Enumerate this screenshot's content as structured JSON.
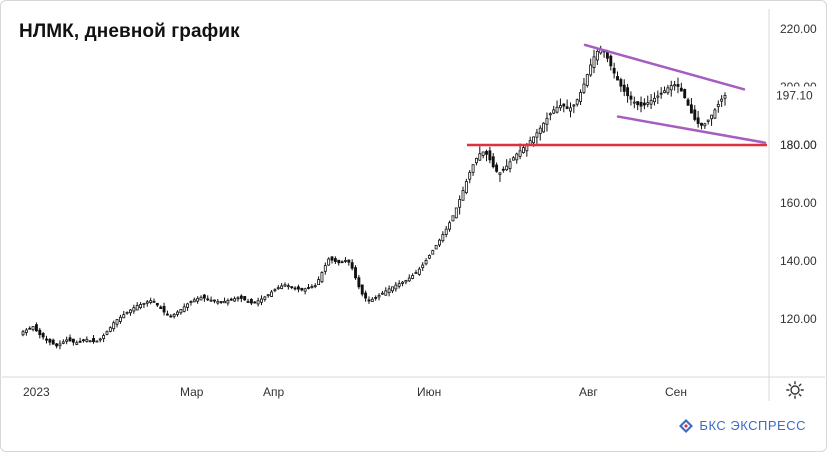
{
  "chart_data": {
    "type": "candlestick",
    "title": "НЛМК, дневной график",
    "ylim": [
      100,
      225
    ],
    "y_ticks": [
      120,
      140,
      160,
      180,
      200,
      220
    ],
    "y_tick_labels": [
      "120.00",
      "140.00",
      "160.00",
      "180.00",
      "200.00",
      "220.00"
    ],
    "x_tick_labels": [
      "2023",
      "Мар",
      "Апр",
      "Июн",
      "Авг",
      "Сен"
    ],
    "last_price": 197.1,
    "last_price_label": "197.10",
    "close": [
      115.6,
      116.2,
      116.8,
      117.4,
      115.9,
      114.6,
      113.8,
      112.7,
      112.0,
      111.3,
      110.7,
      111.4,
      112.1,
      112.8,
      112.4,
      112.0,
      111.8,
      112.2,
      112.6,
      113.0,
      112.5,
      112.2,
      112.4,
      113.1,
      114.3,
      115.6,
      117.0,
      118.7,
      119.8,
      120.6,
      121.5,
      122.3,
      123.1,
      123.9,
      124.7,
      125.0,
      125.4,
      125.9,
      126.3,
      126.1,
      124.8,
      123.6,
      122.4,
      121.5,
      120.9,
      121.6,
      122.4,
      123.3,
      124.2,
      125.2,
      126.0,
      126.6,
      127.1,
      127.5,
      127.2,
      126.9,
      126.5,
      126.2,
      126.0,
      125.8,
      126.1,
      126.4,
      126.7,
      127.0,
      127.3,
      127.1,
      126.6,
      126.0,
      125.5,
      125.8,
      126.3,
      126.9,
      127.6,
      128.4,
      129.3,
      130.1,
      130.8,
      131.4,
      131.8,
      131.5,
      131.1,
      130.7,
      130.3,
      130.0,
      130.4,
      130.8,
      131.2,
      131.5,
      133.6,
      136.0,
      138.4,
      140.7,
      140.3,
      139.8,
      139.4,
      139.7,
      140.2,
      139.6,
      137.5,
      134.2,
      131.1,
      128.6,
      127.2,
      126.4,
      126.8,
      127.4,
      128.1,
      128.9,
      129.7,
      130.4,
      131.1,
      131.7,
      132.2,
      132.7,
      133.3,
      134.1,
      135.0,
      136.0,
      137.2,
      138.6,
      140.2,
      141.9,
      143.6,
      145.4,
      147.2,
      149.1,
      151.0,
      153.2,
      155.6,
      158.3,
      161.2,
      164.3,
      167.4,
      170.5,
      173.2,
      175.4,
      177.0,
      177.6,
      176.8,
      174.9,
      172.5,
      170.9,
      170.4,
      171.3,
      172.7,
      174.2,
      175.6,
      176.9,
      178.0,
      179.1,
      180.2,
      181.5,
      182.8,
      184.2,
      185.8,
      187.5,
      189.2,
      190.8,
      192.1,
      193.0,
      193.6,
      193.4,
      192.6,
      192.8,
      193.8,
      195.6,
      198.1,
      201.0,
      204.3,
      207.6,
      210.4,
      212.3,
      213.0,
      212.1,
      209.9,
      207.3,
      204.8,
      202.4,
      200.3,
      198.5,
      197.0,
      195.8,
      194.8,
      193.9,
      193.4,
      193.8,
      194.6,
      195.4,
      196.1,
      196.9,
      197.8,
      198.7,
      199.7,
      200.5,
      200.8,
      200.2,
      198.6,
      196.3,
      193.7,
      191.0,
      188.8,
      187.4,
      186.8,
      187.3,
      188.6,
      190.3,
      192.1,
      194.0,
      195.8,
      197.1
    ]
  },
  "branding": {
    "logo_text": "БКС ЭКСПРЕСС",
    "logo_color": "#3d6cc4",
    "support_color": "#e0303c",
    "trend_color": "#a65dc0"
  },
  "icons": {
    "settings": "settings-sun-icon"
  }
}
